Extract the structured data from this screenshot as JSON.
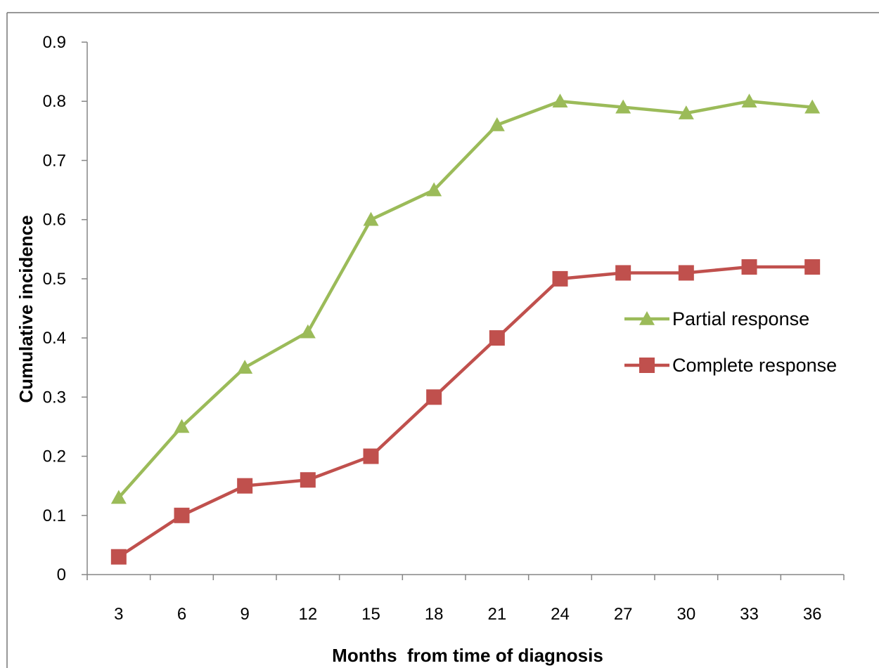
{
  "chart_data": {
    "type": "line",
    "title": "",
    "xlabel": "Months  from time of diagnosis",
    "ylabel": "Cumulative incidence",
    "categories": [
      "3",
      "6",
      "9",
      "12",
      "15",
      "18",
      "21",
      "24",
      "27",
      "30",
      "33",
      "36"
    ],
    "ylim": [
      0,
      0.9
    ],
    "yticks": [
      "0",
      "0.1",
      "0.2",
      "0.3",
      "0.4",
      "0.5",
      "0.6",
      "0.7",
      "0.8",
      "0.9"
    ],
    "grid": false,
    "legend_position": "right",
    "series": [
      {
        "name": "Partial response",
        "marker": "triangle",
        "color": "#9BBB59",
        "values": [
          0.13,
          0.25,
          0.35,
          0.41,
          0.6,
          0.65,
          0.76,
          0.8,
          0.79,
          0.78,
          0.8,
          0.79
        ]
      },
      {
        "name": "Complete response",
        "marker": "square",
        "color": "#C0504D",
        "values": [
          0.03,
          0.1,
          0.15,
          0.16,
          0.2,
          0.3,
          0.4,
          0.5,
          0.51,
          0.51,
          0.52,
          0.52
        ]
      }
    ]
  }
}
